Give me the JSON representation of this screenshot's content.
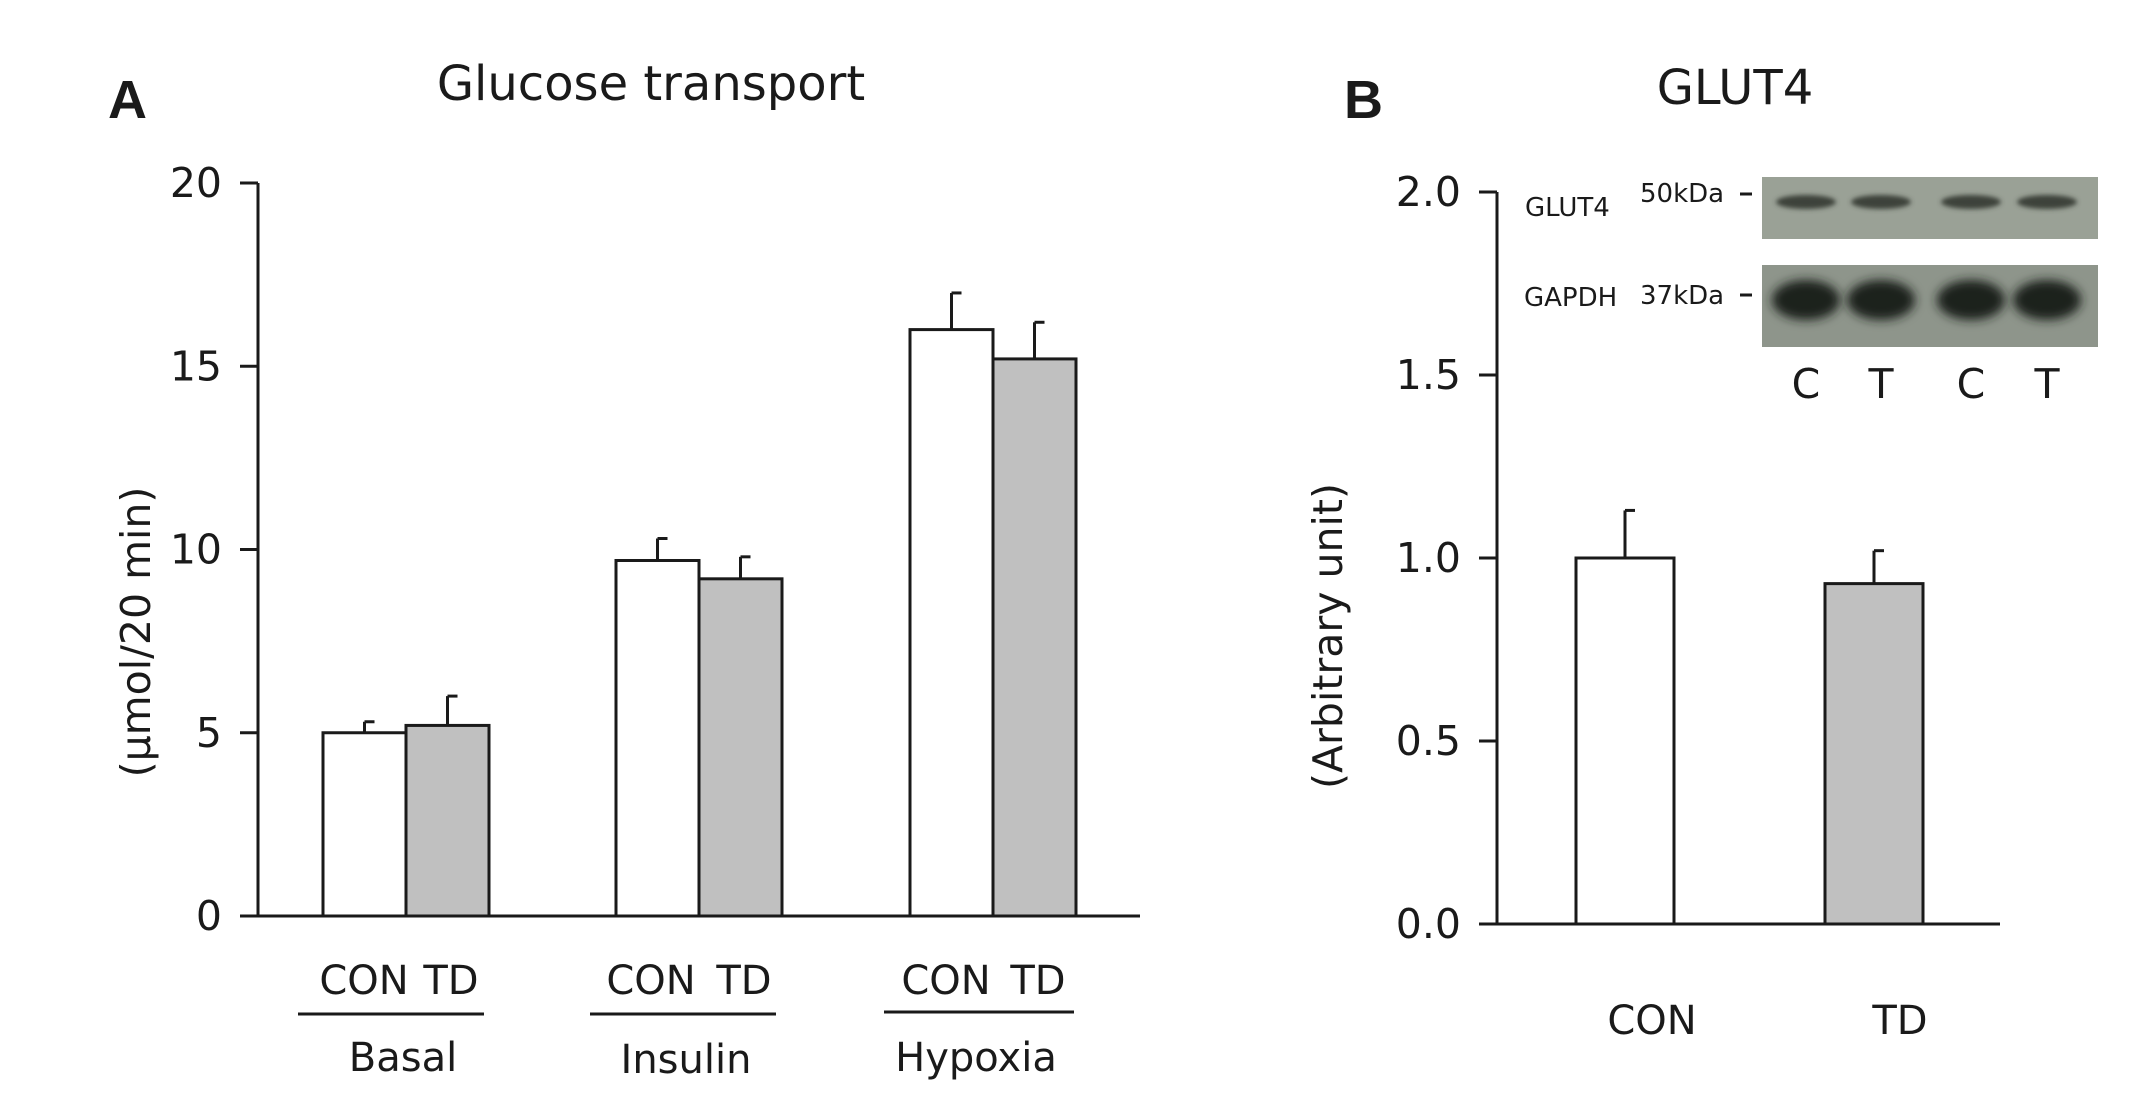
{
  "chart_data": [
    {
      "type": "bar",
      "panel": "A",
      "title": "Glucose transport",
      "xlabel": "",
      "ylabel": "(µmol/20 min)",
      "ylim": [
        0,
        20
      ],
      "yticks": [
        "0",
        "5",
        "10",
        "15",
        "20"
      ],
      "groups": [
        "Basal",
        "Insulin",
        "Hypoxia"
      ],
      "series": [
        {
          "name": "CON",
          "color": "#ffffff",
          "values": [
            5.0,
            9.7,
            16.0
          ],
          "errors": [
            0.3,
            0.6,
            1.0
          ]
        },
        {
          "name": "TD",
          "color": "#c0c0c0",
          "values": [
            5.2,
            9.2,
            15.2
          ],
          "errors": [
            0.8,
            0.6,
            1.0
          ]
        }
      ]
    },
    {
      "type": "bar",
      "panel": "B",
      "title": "GLUT4",
      "xlabel": "",
      "ylabel": "(Arbitrary unit)",
      "ylim": [
        0,
        2.0
      ],
      "yticks": [
        "0.0",
        "0.5",
        "1.0",
        "1.5",
        "2.0"
      ],
      "categories": [
        "CON",
        "TD"
      ],
      "values": [
        1.0,
        0.93
      ],
      "errors": [
        0.13,
        0.09
      ],
      "colors": [
        "#ffffff",
        "#c0c0c0"
      ],
      "inset_blot": {
        "rows": [
          {
            "protein": "GLUT4",
            "marker": "50kDa"
          },
          {
            "protein": "GAPDH",
            "marker": "37kDa"
          }
        ],
        "lanes": [
          "C",
          "T",
          "C",
          "T"
        ]
      }
    }
  ]
}
